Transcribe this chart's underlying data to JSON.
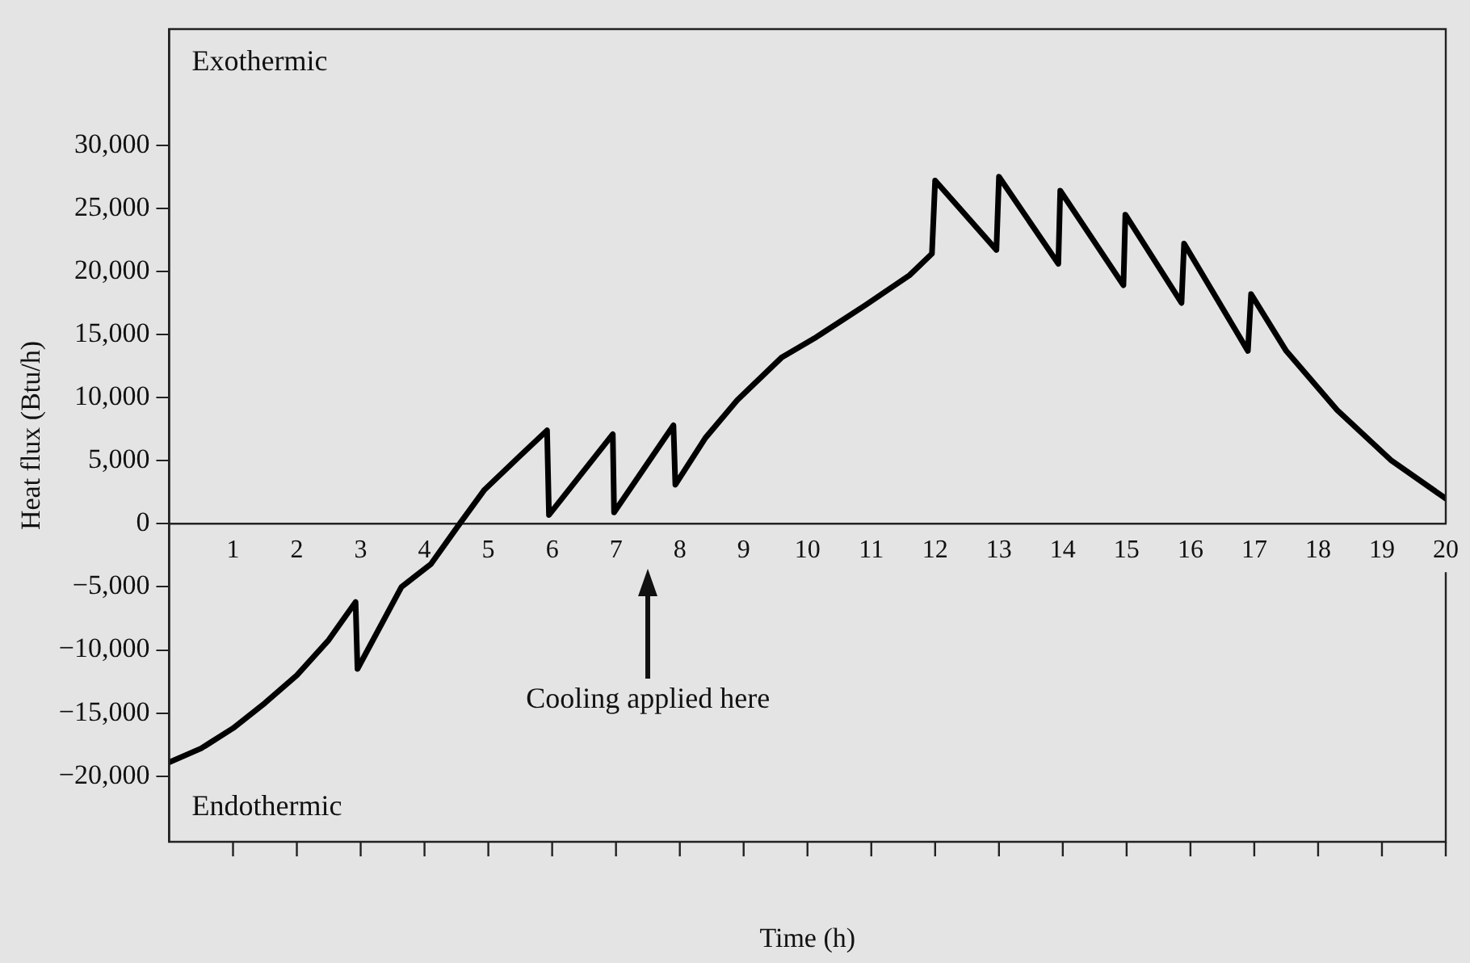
{
  "chart_data": {
    "type": "line",
    "xlabel": "Time (h)",
    "ylabel": "Heat flux (Btu/h)",
    "xlim": [
      0,
      20
    ],
    "xticks": [
      1,
      2,
      3,
      4,
      5,
      6,
      7,
      8,
      9,
      10,
      11,
      12,
      13,
      14,
      15,
      16,
      17,
      18,
      19,
      20
    ],
    "ylim": [
      -25200,
      39200
    ],
    "yticks": [
      {
        "value": -20000,
        "label": "−20,000"
      },
      {
        "value": -15000,
        "label": "−15,000"
      },
      {
        "value": -10000,
        "label": "−10,000"
      },
      {
        "value": -5000,
        "label": "−5,000"
      },
      {
        "value": 0,
        "label": "0"
      },
      {
        "value": 5000,
        "label": "5,000"
      },
      {
        "value": 10000,
        "label": "10,000"
      },
      {
        "value": 15000,
        "label": "15,000"
      },
      {
        "value": 20000,
        "label": "20,000"
      },
      {
        "value": 25000,
        "label": "25,000"
      },
      {
        "value": 30000,
        "label": "30,000"
      }
    ],
    "grid": false,
    "legend": false,
    "marker": "none",
    "line_style": "solid",
    "annotations": [
      "Exothermic",
      "Endothermic",
      "Cooling applied here"
    ],
    "series": [
      {
        "color": "#000000",
        "x": [
          0,
          0.5,
          1,
          1.5,
          2,
          2.5,
          2.92,
          2.95,
          3.64,
          4.1,
          4.55,
          4.94,
          5.5,
          5.92,
          5.95,
          6.95,
          6.97,
          7.9,
          7.93,
          8.4,
          8.9,
          9.6,
          10.14,
          10.9,
          11.6,
          11.95,
          12,
          12.96,
          13,
          13.93,
          13.96,
          14.95,
          14.98,
          15.86,
          15.9,
          16.9,
          16.95,
          17.5,
          18.3,
          19.15,
          20
        ],
        "values": [
          -18900,
          -17800,
          -16200,
          -14200,
          -12000,
          -9200,
          -6200,
          -11500,
          -5000,
          -3200,
          0,
          2700,
          5400,
          7400,
          700,
          7100,
          900,
          7800,
          3100,
          6800,
          9800,
          13200,
          14800,
          17300,
          19700,
          21400,
          27200,
          21700,
          27500,
          20600,
          26400,
          18900,
          24500,
          17500,
          22200,
          13700,
          18200,
          13700,
          9000,
          5000,
          2000
        ]
      }
    ]
  }
}
